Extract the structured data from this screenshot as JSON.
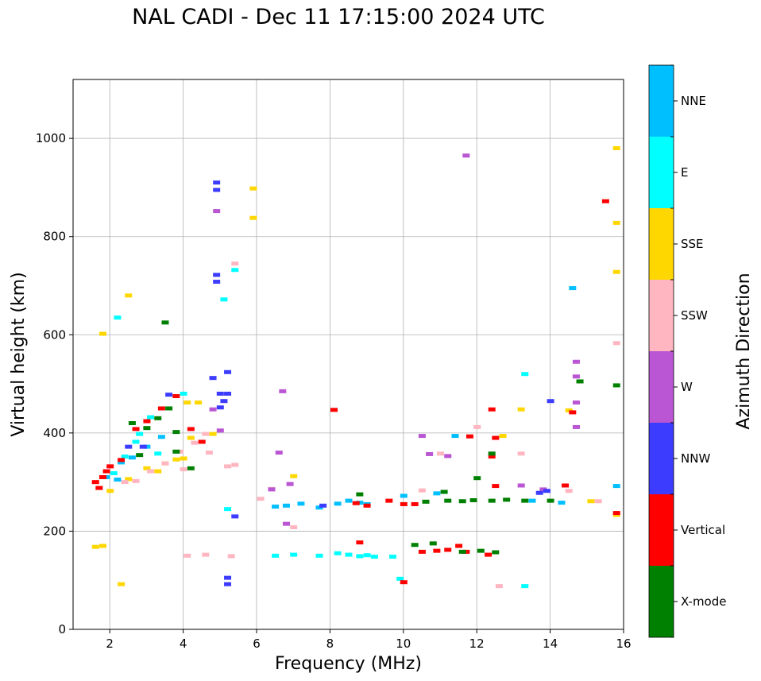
{
  "chart_data": {
    "type": "scatter",
    "title": "NAL CADI - Dec 11 17:15:00 2024 UTC",
    "xlabel": "Frequency (MHz)",
    "ylabel": "Virtual height (km)",
    "xlim": [
      1,
      16
    ],
    "ylim": [
      0,
      1120
    ],
    "xticks": [
      2,
      4,
      6,
      8,
      10,
      12,
      14,
      16
    ],
    "yticks": [
      0,
      200,
      400,
      600,
      800,
      1000
    ],
    "grid": true,
    "colorbar": {
      "label": "Azimuth Direction",
      "categories": [
        {
          "name": "NNE",
          "color": "#00bfff"
        },
        {
          "name": "E",
          "color": "#00ffff"
        },
        {
          "name": "SSE",
          "color": "#ffd700"
        },
        {
          "name": "SSW",
          "color": "#ffb6c1"
        },
        {
          "name": "W",
          "color": "#ba55d3"
        },
        {
          "name": "NNW",
          "color": "#3c3cff"
        },
        {
          "name": "Vertical",
          "color": "#ff0000"
        },
        {
          "name": "X-mode",
          "color": "#008000"
        }
      ]
    },
    "series": [
      {
        "name": "NNE",
        "color": "#00bfff",
        "points": [
          [
            6.5,
            250
          ],
          [
            6.8,
            252
          ],
          [
            7.2,
            256
          ],
          [
            7.7,
            248
          ],
          [
            8.2,
            256
          ],
          [
            8.5,
            262
          ],
          [
            8.8,
            258
          ],
          [
            9.0,
            255
          ],
          [
            10.0,
            272
          ],
          [
            10.9,
            277
          ],
          [
            11.4,
            394
          ],
          [
            13.5,
            262
          ],
          [
            14.3,
            258
          ],
          [
            14.6,
            695
          ],
          [
            15.8,
            292
          ],
          [
            2.3,
            340
          ],
          [
            2.6,
            350
          ],
          [
            3.0,
            372
          ],
          [
            3.4,
            392
          ],
          [
            1.9,
            310
          ],
          [
            2.2,
            305
          ]
        ]
      },
      {
        "name": "E",
        "color": "#00ffff",
        "points": [
          [
            8.5,
            152
          ],
          [
            8.8,
            149
          ],
          [
            9.0,
            151
          ],
          [
            9.2,
            148
          ],
          [
            8.2,
            155
          ],
          [
            9.7,
            148
          ],
          [
            6.5,
            150
          ],
          [
            7.0,
            152
          ],
          [
            7.7,
            150
          ],
          [
            2.1,
            318
          ],
          [
            2.4,
            352
          ],
          [
            2.8,
            398
          ],
          [
            3.1,
            432
          ],
          [
            2.7,
            382
          ],
          [
            3.3,
            358
          ],
          [
            5.4,
            732
          ],
          [
            5.1,
            672
          ],
          [
            2.2,
            635
          ],
          [
            13.3,
            520
          ],
          [
            13.3,
            88
          ],
          [
            9.9,
            103
          ],
          [
            5.2,
            245
          ],
          [
            4.0,
            480
          ]
        ]
      },
      {
        "name": "SSE",
        "color": "#ffd700",
        "points": [
          [
            1.6,
            168
          ],
          [
            1.8,
            170
          ],
          [
            2.3,
            92
          ],
          [
            2.5,
            680
          ],
          [
            1.8,
            602
          ],
          [
            2.0,
            282
          ],
          [
            2.5,
            306
          ],
          [
            3.0,
            328
          ],
          [
            3.3,
            322
          ],
          [
            3.5,
            338
          ],
          [
            3.8,
            346
          ],
          [
            4.0,
            348
          ],
          [
            4.2,
            390
          ],
          [
            4.1,
            462
          ],
          [
            4.4,
            462
          ],
          [
            4.8,
            398
          ],
          [
            7.0,
            312
          ],
          [
            12.7,
            394
          ],
          [
            13.2,
            448
          ],
          [
            14.5,
            446
          ],
          [
            15.1,
            261
          ],
          [
            15.8,
            980
          ],
          [
            15.8,
            828
          ],
          [
            15.8,
            728
          ],
          [
            15.8,
            233
          ],
          [
            5.9,
            898
          ],
          [
            5.9,
            838
          ]
        ]
      },
      {
        "name": "SSW",
        "color": "#ffb6c1",
        "points": [
          [
            2.4,
            300
          ],
          [
            2.7,
            302
          ],
          [
            3.1,
            322
          ],
          [
            3.5,
            338
          ],
          [
            4.0,
            326
          ],
          [
            3.9,
            362
          ],
          [
            4.3,
            380
          ],
          [
            4.6,
            398
          ],
          [
            4.7,
            360
          ],
          [
            5.2,
            332
          ],
          [
            5.4,
            335
          ],
          [
            6.1,
            266
          ],
          [
            6.4,
            286
          ],
          [
            7.0,
            208
          ],
          [
            4.1,
            150
          ],
          [
            4.6,
            152
          ],
          [
            5.3,
            149
          ],
          [
            11.0,
            358
          ],
          [
            12.0,
            412
          ],
          [
            12.6,
            88
          ],
          [
            13.2,
            358
          ],
          [
            14.5,
            282
          ],
          [
            15.3,
            261
          ],
          [
            15.8,
            583
          ],
          [
            5.4,
            745
          ],
          [
            10.5,
            283
          ]
        ]
      },
      {
        "name": "W",
        "color": "#ba55d3",
        "points": [
          [
            6.7,
            485
          ],
          [
            6.6,
            360
          ],
          [
            6.4,
            285
          ],
          [
            6.9,
            296
          ],
          [
            6.8,
            215
          ],
          [
            4.9,
            852
          ],
          [
            10.5,
            394
          ],
          [
            10.7,
            357
          ],
          [
            11.2,
            353
          ],
          [
            11.7,
            965
          ],
          [
            13.2,
            293
          ],
          [
            14.7,
            545
          ],
          [
            14.7,
            515
          ],
          [
            14.7,
            462
          ],
          [
            14.7,
            412
          ],
          [
            13.8,
            285
          ],
          [
            5.0,
            405
          ],
          [
            4.8,
            448
          ]
        ]
      },
      {
        "name": "NNW",
        "color": "#3c3cff",
        "points": [
          [
            4.9,
            910
          ],
          [
            4.9,
            895
          ],
          [
            4.9,
            722
          ],
          [
            4.9,
            708
          ],
          [
            5.2,
            524
          ],
          [
            5.0,
            480
          ],
          [
            5.1,
            465
          ],
          [
            5.0,
            452
          ],
          [
            5.2,
            480
          ],
          [
            5.4,
            230
          ],
          [
            5.2,
            105
          ],
          [
            5.2,
            92
          ],
          [
            4.8,
            512
          ],
          [
            3.6,
            478
          ],
          [
            2.5,
            372
          ],
          [
            2.9,
            372
          ],
          [
            14.0,
            465
          ],
          [
            13.9,
            282
          ],
          [
            13.7,
            278
          ],
          [
            7.8,
            252
          ]
        ]
      },
      {
        "name": "Vertical",
        "color": "#ff0000",
        "points": [
          [
            1.6,
            300
          ],
          [
            1.8,
            310
          ],
          [
            1.9,
            322
          ],
          [
            1.7,
            288
          ],
          [
            2.0,
            332
          ],
          [
            2.3,
            345
          ],
          [
            2.7,
            408
          ],
          [
            3.0,
            424
          ],
          [
            3.4,
            450
          ],
          [
            3.8,
            475
          ],
          [
            4.2,
            408
          ],
          [
            4.5,
            382
          ],
          [
            10.5,
            158
          ],
          [
            10.9,
            160
          ],
          [
            11.2,
            162
          ],
          [
            11.5,
            170
          ],
          [
            11.7,
            158
          ],
          [
            12.3,
            152
          ],
          [
            10.3,
            255
          ],
          [
            8.7,
            257
          ],
          [
            9.0,
            252
          ],
          [
            9.6,
            262
          ],
          [
            10.0,
            255
          ],
          [
            8.1,
            447
          ],
          [
            10.0,
            96
          ],
          [
            12.4,
            448
          ],
          [
            12.5,
            390
          ],
          [
            12.4,
            352
          ],
          [
            12.5,
            292
          ],
          [
            14.6,
            442
          ],
          [
            14.4,
            293
          ],
          [
            15.5,
            872
          ],
          [
            15.8,
            237
          ],
          [
            11.8,
            393
          ],
          [
            8.8,
            177
          ]
        ]
      },
      {
        "name": "X-mode",
        "color": "#008000",
        "points": [
          [
            2.6,
            420
          ],
          [
            3.0,
            410
          ],
          [
            3.3,
            430
          ],
          [
            3.5,
            625
          ],
          [
            3.6,
            450
          ],
          [
            3.8,
            362
          ],
          [
            12.0,
            308
          ],
          [
            12.4,
            262
          ],
          [
            12.8,
            264
          ],
          [
            13.3,
            262
          ],
          [
            14.0,
            262
          ],
          [
            10.6,
            260
          ],
          [
            11.2,
            262
          ],
          [
            11.6,
            261
          ],
          [
            10.3,
            172
          ],
          [
            10.8,
            175
          ],
          [
            11.6,
            158
          ],
          [
            12.1,
            160
          ],
          [
            12.5,
            157
          ],
          [
            14.8,
            505
          ],
          [
            15.8,
            497
          ],
          [
            8.8,
            275
          ],
          [
            11.1,
            280
          ],
          [
            12.4,
            358
          ],
          [
            11.9,
            263
          ],
          [
            3.8,
            402
          ],
          [
            2.8,
            355
          ],
          [
            4.2,
            328
          ]
        ]
      }
    ]
  }
}
